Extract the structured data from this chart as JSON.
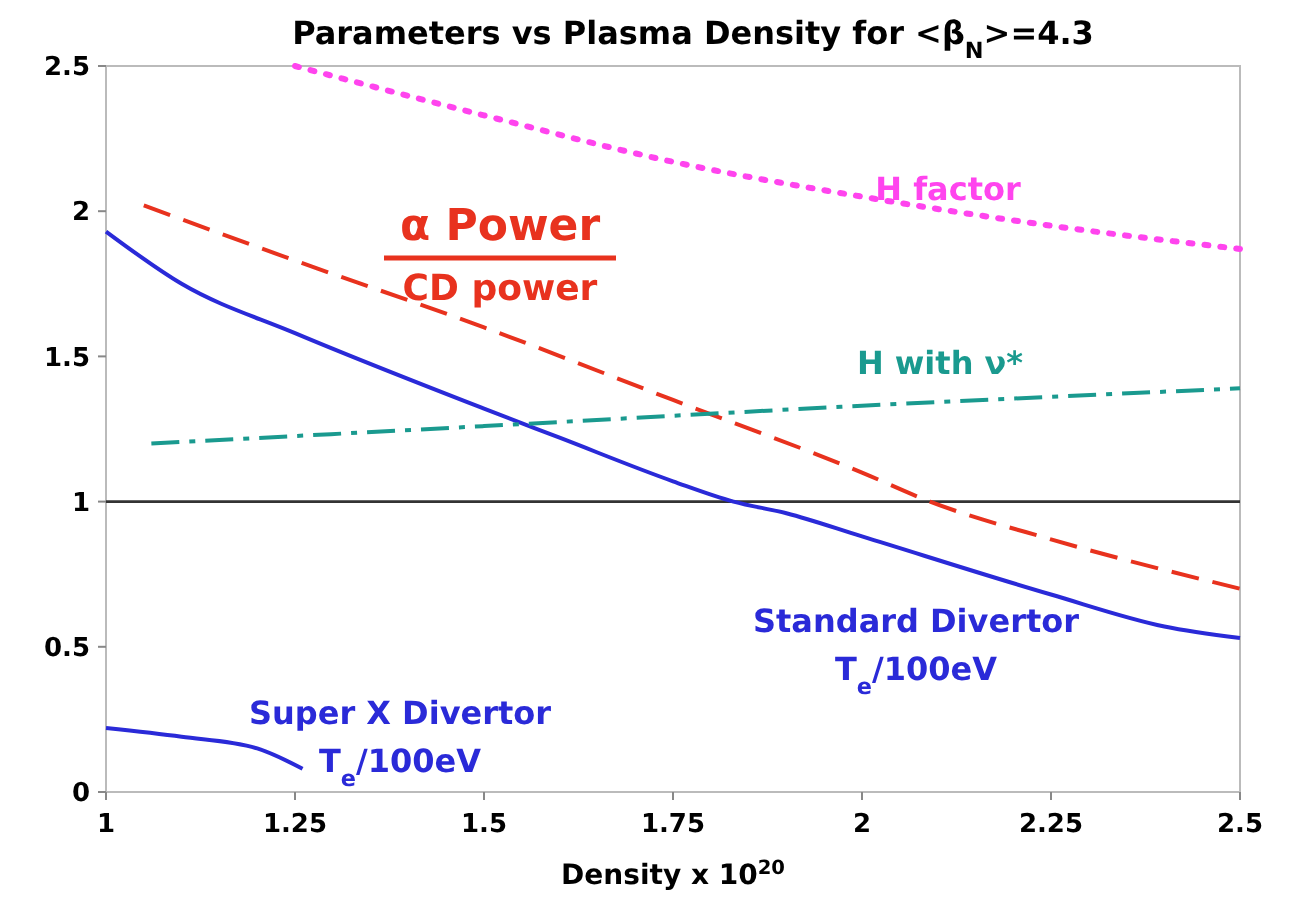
{
  "chart_data": {
    "type": "line",
    "title": "Parameters vs Plasma Density for <β$_{N}$>=4.3",
    "xlabel": "Density x 10$^{20}$",
    "xlim": [
      1,
      2.5
    ],
    "xticks": [
      1,
      1.25,
      1.5,
      1.75,
      2,
      2.25,
      2.5
    ],
    "ylim": [
      0,
      2.5
    ],
    "yticks": [
      0,
      0.5,
      1,
      1.5,
      2,
      2.5
    ],
    "grid": false,
    "ref_lines": [
      {
        "axis": "y",
        "value": 1,
        "color": "#333333"
      }
    ],
    "series": [
      {
        "name": "Standard Divertor\nT$_{e}$/100eV",
        "color": "#2a2ad8",
        "line_style": "solid",
        "x": [
          1,
          1.1,
          1.25,
          1.5,
          1.6,
          1.75,
          1.83,
          1.9,
          2,
          2.25,
          2.4,
          2.5
        ],
        "values": [
          1.93,
          1.75,
          1.58,
          1.32,
          1.22,
          1.07,
          1.0,
          0.96,
          0.88,
          0.68,
          0.57,
          0.53
        ]
      },
      {
        "name": "Super X Divertor\nT$_{e}$/100eV",
        "color": "#2a2ad8",
        "line_style": "solid",
        "x": [
          1,
          1.1,
          1.2,
          1.26
        ],
        "values": [
          0.22,
          0.19,
          0.15,
          0.08
        ]
      },
      {
        "name": "α Power\nCD power",
        "color": "#e8321e",
        "line_style": "dashed",
        "x": [
          1.05,
          1.25,
          1.5,
          1.75,
          2,
          2.09,
          2.25,
          2.5
        ],
        "values": [
          2.02,
          1.83,
          1.6,
          1.35,
          1.1,
          1.0,
          0.87,
          0.7
        ]
      },
      {
        "name": "H with ν*",
        "color": "#1a9a8f",
        "line_style": "dashdot",
        "x": [
          1.06,
          1.5,
          2,
          2.5
        ],
        "values": [
          1.2,
          1.26,
          1.33,
          1.39
        ]
      },
      {
        "name": "H factor",
        "color": "#ff44ee",
        "line_style": "dotted",
        "x": [
          1.25,
          1.5,
          1.75,
          2,
          2.25,
          2.5
        ],
        "values": [
          2.5,
          2.33,
          2.17,
          2.05,
          1.95,
          1.87
        ]
      }
    ]
  }
}
